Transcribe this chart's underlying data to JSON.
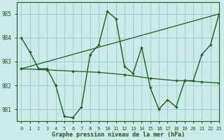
{
  "title": "Graphe pression niveau de la mer (hPa)",
  "bg_color": "#cceaea",
  "grid_color": "#9ecece",
  "line_color": "#1a5c1a",
  "xlim": [
    -0.5,
    23
  ],
  "ylim": [
    980.5,
    985.5
  ],
  "yticks": [
    981,
    982,
    983,
    984,
    985
  ],
  "xticks": [
    0,
    1,
    2,
    3,
    4,
    5,
    6,
    7,
    8,
    9,
    10,
    11,
    12,
    13,
    14,
    15,
    16,
    17,
    18,
    19,
    20,
    21,
    22,
    23
  ],
  "series1_x": [
    0,
    1,
    2,
    3,
    4,
    5,
    6,
    7,
    8,
    9,
    10,
    11,
    12,
    13,
    14,
    15,
    16,
    17,
    18,
    19,
    20,
    21,
    22,
    23
  ],
  "series1_y": [
    984.0,
    983.4,
    982.7,
    982.7,
    982.0,
    980.7,
    980.65,
    981.1,
    983.3,
    983.7,
    985.1,
    984.8,
    982.8,
    982.5,
    983.6,
    981.9,
    981.0,
    981.4,
    981.1,
    982.2,
    982.2,
    983.3,
    983.7,
    985.0
  ],
  "series2_x": [
    0,
    23
  ],
  "series2_y": [
    982.7,
    985.0
  ],
  "series3_x": [
    0,
    3,
    6,
    9,
    12,
    15,
    18,
    19,
    21,
    23
  ],
  "series3_y": [
    982.7,
    982.65,
    982.6,
    982.55,
    982.45,
    982.3,
    982.2,
    982.2,
    982.15,
    982.1
  ]
}
